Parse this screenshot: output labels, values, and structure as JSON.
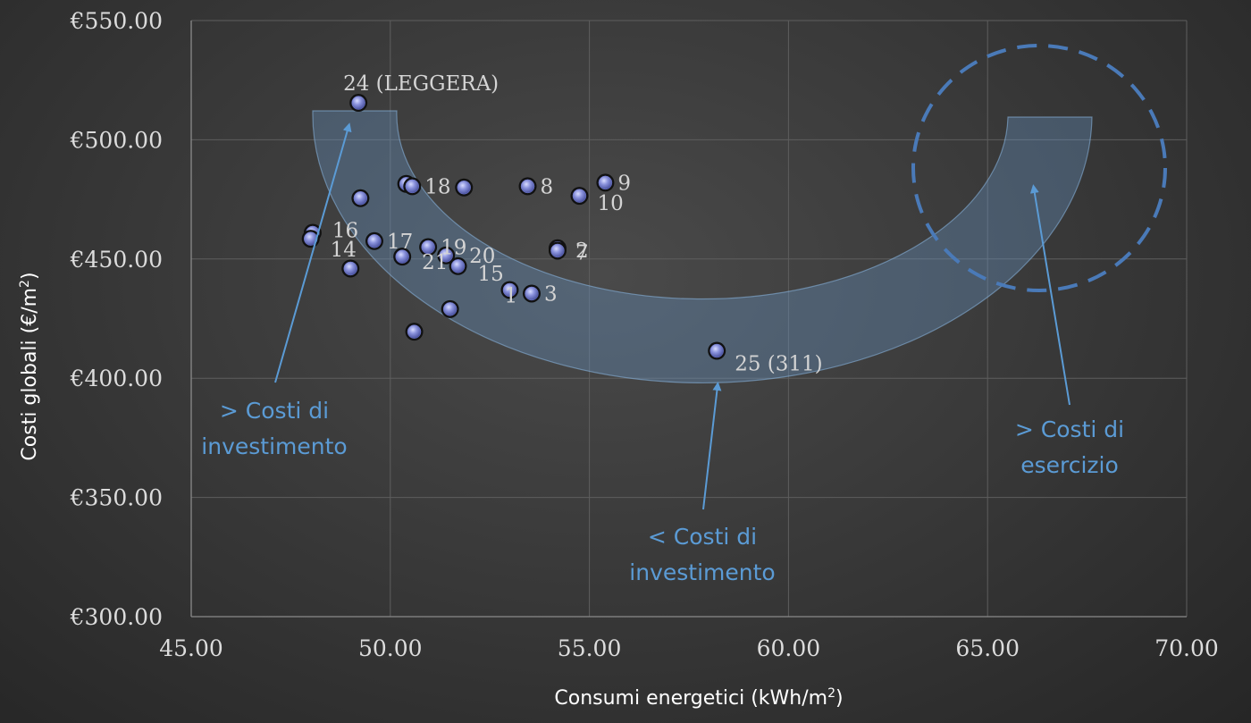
{
  "chart_data": {
    "type": "scatter",
    "title": "",
    "xlabel": "Consumi energetici (kWh/m",
    "xlabel_sup": "2",
    "xlabel_end": ")",
    "ylabel": "Costi globali (€/m",
    "ylabel_sup": "2",
    "ylabel_end": ")",
    "xlim": [
      45,
      70
    ],
    "ylim": [
      300,
      550
    ],
    "x_ticks": [
      "45.00",
      "50.00",
      "55.00",
      "60.00",
      "65.00",
      "70.00"
    ],
    "y_ticks": [
      "€300.00",
      "€350.00",
      "€400.00",
      "€450.00",
      "€500.00",
      "€550.00"
    ],
    "grid": true,
    "marker_color": "#6a74c4",
    "annotation_color": "#5b9bd5",
    "points": [
      {
        "x": 49.2,
        "y": 515.5,
        "label": "24 (LEGGERA)"
      },
      {
        "x": 50.4,
        "y": 481.5,
        "label": ""
      },
      {
        "x": 50.55,
        "y": 480.5,
        "label": "18"
      },
      {
        "x": 51.85,
        "y": 480.0,
        "label": ""
      },
      {
        "x": 53.45,
        "y": 480.5,
        "label": "8"
      },
      {
        "x": 55.4,
        "y": 482.0,
        "label": "9"
      },
      {
        "x": 54.75,
        "y": 476.5,
        "label": "10"
      },
      {
        "x": 49.25,
        "y": 475.5,
        "label": ""
      },
      {
        "x": 48.05,
        "y": 461.0,
        "label": "16"
      },
      {
        "x": 48.0,
        "y": 458.5,
        "label": "14"
      },
      {
        "x": 49.6,
        "y": 457.5,
        "label": "17"
      },
      {
        "x": 50.95,
        "y": 455.0,
        "label": "19"
      },
      {
        "x": 54.2,
        "y": 454.5,
        "label": "2"
      },
      {
        "x": 54.2,
        "y": 453.5,
        "label": "7"
      },
      {
        "x": 50.3,
        "y": 451.0,
        "label": "21"
      },
      {
        "x": 51.4,
        "y": 451.5,
        "label": "20"
      },
      {
        "x": 51.7,
        "y": 447.0,
        "label": "15"
      },
      {
        "x": 49.0,
        "y": 446.0,
        "label": ""
      },
      {
        "x": 53.0,
        "y": 437.0,
        "label": "1"
      },
      {
        "x": 53.55,
        "y": 435.5,
        "label": "3"
      },
      {
        "x": 51.5,
        "y": 429.0,
        "label": ""
      },
      {
        "x": 50.6,
        "y": 419.5,
        "label": ""
      },
      {
        "x": 58.2,
        "y": 411.5,
        "label": "25 (311)"
      }
    ],
    "annotations": [
      {
        "lines": [
          "> Costi di",
          "investimento"
        ]
      },
      {
        "lines": [
          "< Costi di",
          "investimento"
        ]
      },
      {
        "lines": [
          "> Costi di",
          "esercizio"
        ]
      }
    ]
  }
}
